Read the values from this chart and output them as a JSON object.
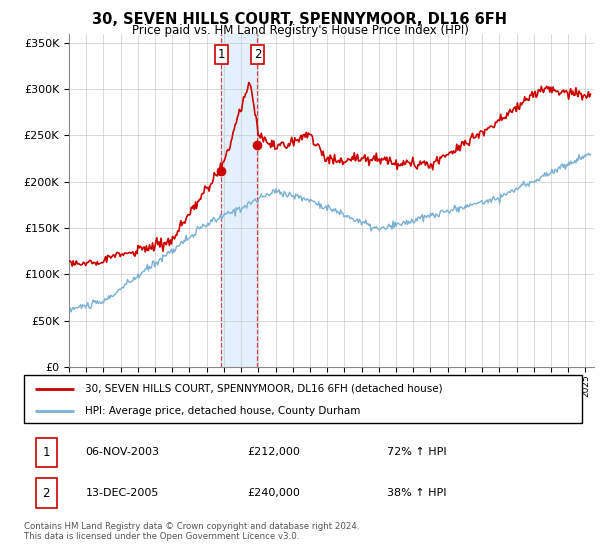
{
  "title": "30, SEVEN HILLS COURT, SPENNYMOOR, DL16 6FH",
  "subtitle": "Price paid vs. HM Land Registry's House Price Index (HPI)",
  "legend_line1": "30, SEVEN HILLS COURT, SPENNYMOOR, DL16 6FH (detached house)",
  "legend_line2": "HPI: Average price, detached house, County Durham",
  "transaction1_date": "06-NOV-2003",
  "transaction1_price": "£212,000",
  "transaction1_hpi": "72% ↑ HPI",
  "transaction2_date": "13-DEC-2005",
  "transaction2_price": "£240,000",
  "transaction2_hpi": "38% ↑ HPI",
  "footer": "Contains HM Land Registry data © Crown copyright and database right 2024.\nThis data is licensed under the Open Government Licence v3.0.",
  "hpi_color": "#7ab0d4",
  "price_color": "#cc0000",
  "marker_color": "#cc0000",
  "shading_color": "#ddeeff",
  "ylim": [
    0,
    360000
  ],
  "yticks": [
    0,
    50000,
    100000,
    150000,
    200000,
    250000,
    300000,
    350000
  ],
  "transaction1_year": 2003.85,
  "transaction1_value": 212000,
  "transaction2_year": 2005.95,
  "transaction2_value": 240000,
  "shade_x1": 2003.85,
  "shade_x2": 2005.95,
  "xlim_left": 1995,
  "xlim_right": 2025.5
}
